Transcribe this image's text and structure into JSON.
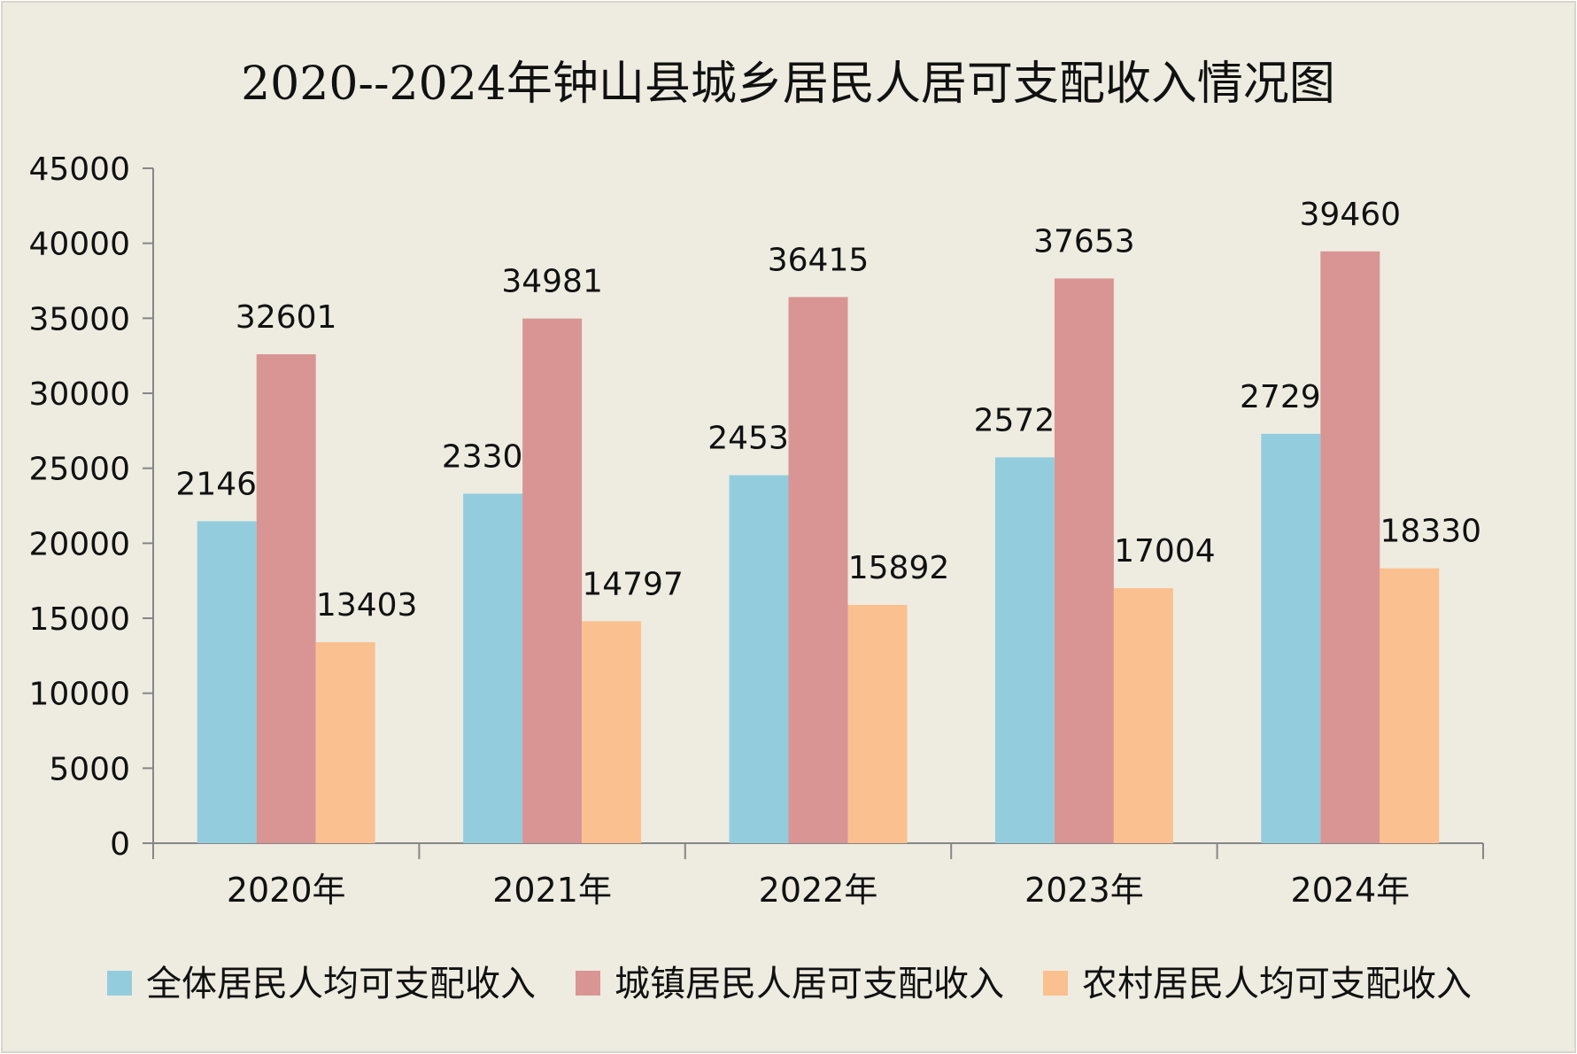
{
  "chart_data": {
    "type": "bar",
    "title": "2020--2024年钟山县城乡居民人居可支配收入情况图",
    "xlabel": "",
    "ylabel": "",
    "categories": [
      "2020年",
      "2021年",
      "2022年",
      "2023年",
      "2024年"
    ],
    "ylim": [
      0,
      45000
    ],
    "yticks": [
      0,
      5000,
      10000,
      15000,
      20000,
      25000,
      30000,
      35000,
      40000,
      45000
    ],
    "grid": false,
    "legend_position": "bottom",
    "series": [
      {
        "name": "全体居民人均可支配收入",
        "color": "#93CDDD",
        "values": [
          21468,
          23301,
          24538,
          25726,
          27295
        ]
      },
      {
        "name": "城镇居民人居可支配收入",
        "color": "#D99594",
        "values": [
          32601,
          34981,
          36415,
          37653,
          39460
        ]
      },
      {
        "name": "农村居民人均可支配收入",
        "color": "#FAC08F",
        "values": [
          13403,
          14797,
          15892,
          17004,
          18330
        ]
      }
    ],
    "background_color": "#EEECE1",
    "axis_color": "#868686"
  }
}
